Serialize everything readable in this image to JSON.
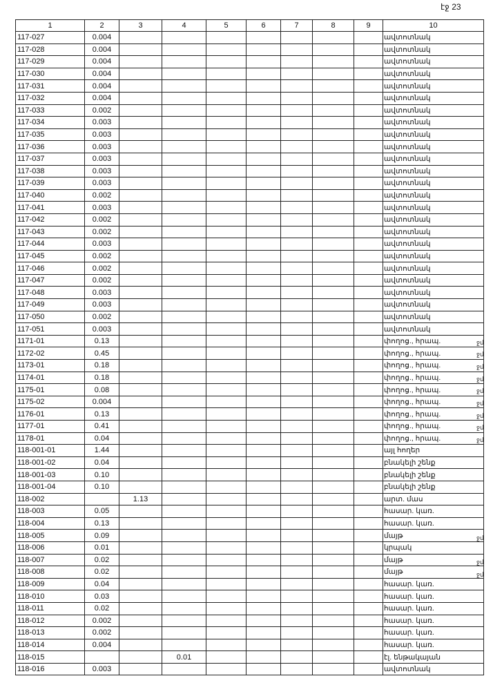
{
  "page_number": "էջ 23",
  "headers": [
    "1",
    "2",
    "3",
    "4",
    "5",
    "6",
    "7",
    "8",
    "9",
    "10"
  ],
  "rows": [
    [
      "117-027",
      "0.004",
      "",
      "",
      "ավտոտնակ",
      ""
    ],
    [
      "117-028",
      "0.004",
      "",
      "",
      "ավտոտնակ",
      ""
    ],
    [
      "117-029",
      "0.004",
      "",
      "",
      "ավտոտնակ",
      ""
    ],
    [
      "117-030",
      "0.004",
      "",
      "",
      "ավտոտնակ",
      ""
    ],
    [
      "117-031",
      "0.004",
      "",
      "",
      "ավտոտնակ",
      ""
    ],
    [
      "117-032",
      "0.004",
      "",
      "",
      "ավտոտնակ",
      ""
    ],
    [
      "117-033",
      "0.002",
      "",
      "",
      "ավտոտնակ",
      ""
    ],
    [
      "117-034",
      "0.003",
      "",
      "",
      "ավտոտնակ",
      ""
    ],
    [
      "117-035",
      "0.003",
      "",
      "",
      "ավտոտնակ",
      ""
    ],
    [
      "117-036",
      "0.003",
      "",
      "",
      "ավտոտնակ",
      ""
    ],
    [
      "117-037",
      "0.003",
      "",
      "",
      "ավտոտնակ",
      ""
    ],
    [
      "117-038",
      "0.003",
      "",
      "",
      "ավտոտնակ",
      ""
    ],
    [
      "117-039",
      "0.003",
      "",
      "",
      "ավտոտնակ",
      ""
    ],
    [
      "117-040",
      "0.002",
      "",
      "",
      "ավտոտնակ",
      ""
    ],
    [
      "117-041",
      "0.003",
      "",
      "",
      "ավտոտնակ",
      ""
    ],
    [
      "117-042",
      "0.002",
      "",
      "",
      "ավտոտնակ",
      ""
    ],
    [
      "117-043",
      "0.002",
      "",
      "",
      "ավտոտնակ",
      ""
    ],
    [
      "117-044",
      "0.003",
      "",
      "",
      "ավտոտնակ",
      ""
    ],
    [
      "117-045",
      "0.002",
      "",
      "",
      "ավտոտնակ",
      ""
    ],
    [
      "117-046",
      "0.002",
      "",
      "",
      "ավտոտնակ",
      ""
    ],
    [
      "117-047",
      "0.002",
      "",
      "",
      "ավտոտնակ",
      ""
    ],
    [
      "117-048",
      "0.003",
      "",
      "",
      "ավտոտնակ",
      ""
    ],
    [
      "117-049",
      "0.003",
      "",
      "",
      "ավտոտնակ",
      ""
    ],
    [
      "117-050",
      "0.002",
      "",
      "",
      "ավտոտնակ",
      ""
    ],
    [
      "117-051",
      "0.003",
      "",
      "",
      "ավտոտնակ",
      ""
    ],
    [
      "1171-01",
      "0.13",
      "",
      "",
      "փողոց., հրապ.",
      "ջմ"
    ],
    [
      "1172-02",
      "0.45",
      "",
      "",
      "փողոց., հրապ.",
      "ջմ"
    ],
    [
      "1173-01",
      "0.18",
      "",
      "",
      "փողոց., հրապ.",
      "ջմ"
    ],
    [
      "1174-01",
      "0.18",
      "",
      "",
      "փողոց., հրապ.",
      "ջմ"
    ],
    [
      "1175-01",
      "0.08",
      "",
      "",
      "փողոց., հրապ.",
      "ջմ"
    ],
    [
      "1175-02",
      "0.004",
      "",
      "",
      "փողոց., հրապ.",
      "ջմ"
    ],
    [
      "1176-01",
      "0.13",
      "",
      "",
      "փողոց., հրապ.",
      "ջմ"
    ],
    [
      "1177-01",
      "0.41",
      "",
      "",
      "փողոց., հրապ.",
      "ջմ"
    ],
    [
      "1178-01",
      "0.04",
      "",
      "",
      "փողոց., հրապ.",
      "ջմ"
    ],
    [
      "118-001-01",
      "1.44",
      "",
      "",
      "այլ հողեր",
      ""
    ],
    [
      "118-001-02",
      "0.04",
      "",
      "",
      "բնակելի շենք",
      ""
    ],
    [
      "118-001-03",
      "0.10",
      "",
      "",
      "բնակելի շենք",
      ""
    ],
    [
      "118-001-04",
      "0.10",
      "",
      "",
      "բնակելի շենք",
      ""
    ],
    [
      "118-002",
      "",
      "1.13",
      "",
      "արտ. մաս",
      ""
    ],
    [
      "118-003",
      "0.05",
      "",
      "",
      "հասար. կառ.",
      ""
    ],
    [
      "118-004",
      "0.13",
      "",
      "",
      "հասար. կառ.",
      ""
    ],
    [
      "118-005",
      "0.09",
      "",
      "",
      "մայթ",
      "ջմ"
    ],
    [
      "118-006",
      "0.01",
      "",
      "",
      "կրպակ",
      ""
    ],
    [
      "118-007",
      "0.02",
      "",
      "",
      "մայթ",
      "ջմ"
    ],
    [
      "118-008",
      "0.02",
      "",
      "",
      "մայթ",
      "ջմ"
    ],
    [
      "118-009",
      "0.04",
      "",
      "",
      "հասար. կառ.",
      ""
    ],
    [
      "118-010",
      "0.03",
      "",
      "",
      "հասար. կառ.",
      ""
    ],
    [
      "118-011",
      "0.02",
      "",
      "",
      "հասար. կառ.",
      ""
    ],
    [
      "118-012",
      "0.002",
      "",
      "",
      "հասար. կառ.",
      ""
    ],
    [
      "118-013",
      "0.002",
      "",
      "",
      "հասար. կառ.",
      ""
    ],
    [
      "118-014",
      "0.004",
      "",
      "",
      "հասար. կառ.",
      ""
    ],
    [
      "118-015",
      "",
      "",
      "0.01",
      "էլ. ենթակայան",
      ""
    ],
    [
      "118-016",
      "0.003",
      "",
      "",
      "ավտոտնակ",
      ""
    ]
  ]
}
